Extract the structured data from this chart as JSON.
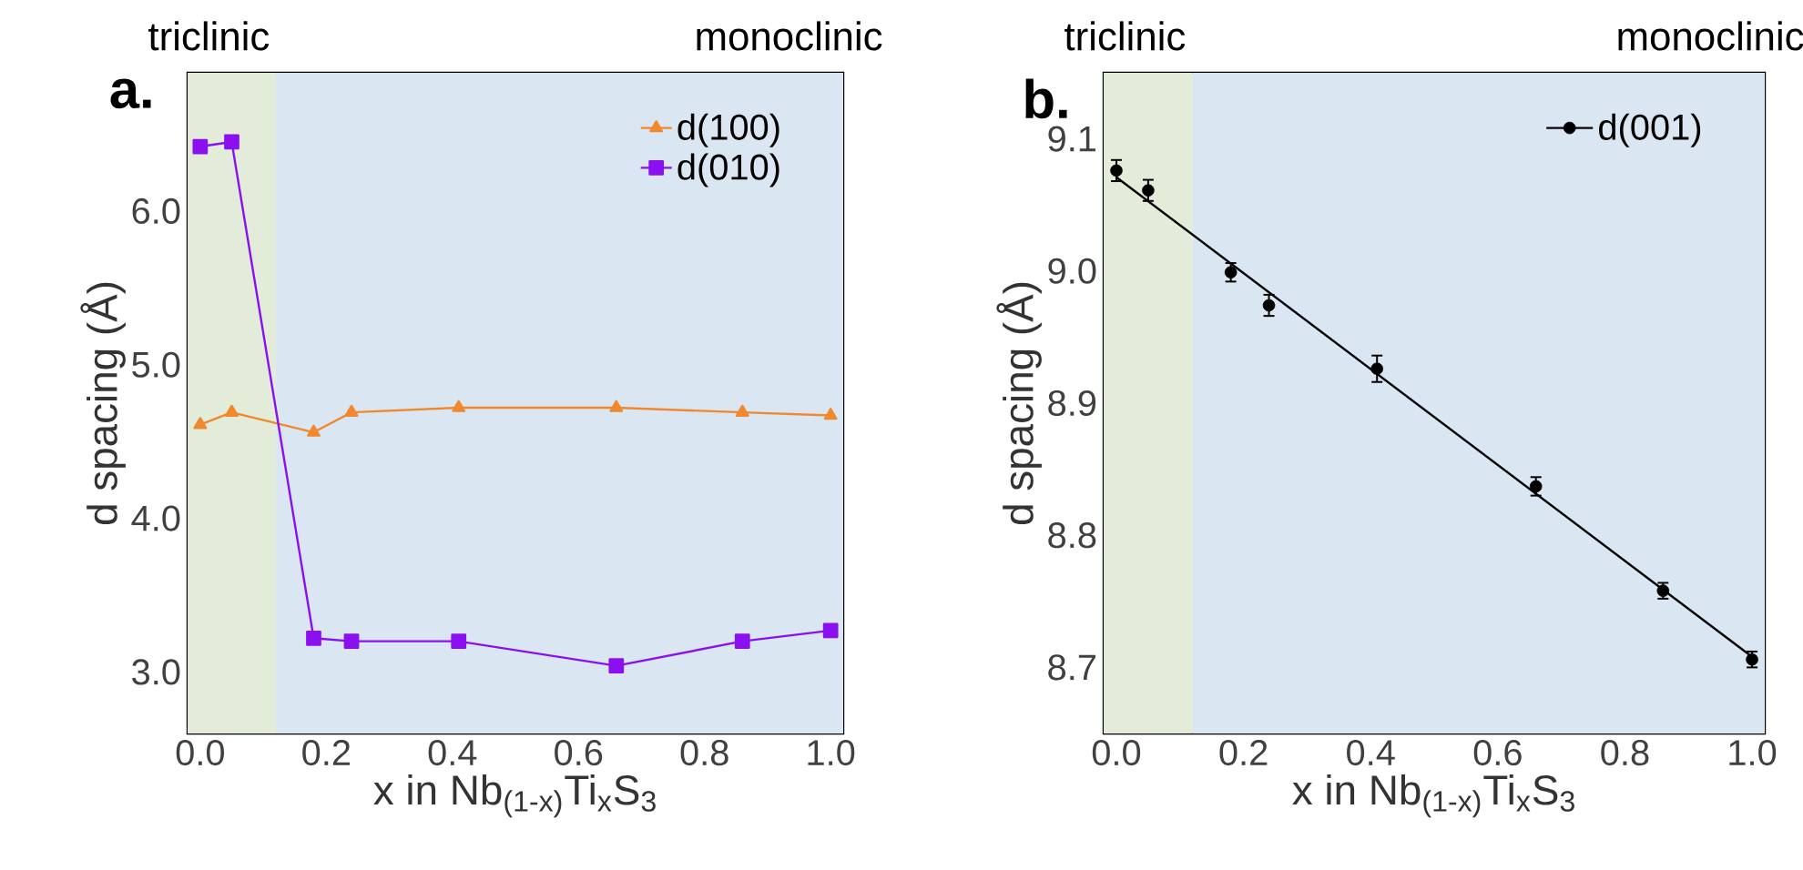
{
  "chart_data": [
    {
      "type": "line",
      "xlabel": "x in Nb$_{(1-x)}$Ti$_{x}$S$_{3}$",
      "ylabel": "d spacing (Å)",
      "annotations": [
        "a."
      ],
      "x": [
        0.0,
        0.05,
        0.18,
        0.24,
        0.41,
        0.66,
        0.86,
        1.0
      ],
      "series": [
        {
          "name": "d(100)",
          "color": "#f0882e",
          "marker": "triangle",
          "values": [
            4.61,
            4.69,
            4.56,
            4.69,
            4.72,
            4.72,
            4.69,
            4.67
          ]
        },
        {
          "name": "d(010)",
          "color": "#8a10f0",
          "marker": "square",
          "values": [
            6.42,
            6.45,
            3.22,
            3.2,
            3.2,
            3.04,
            3.2,
            3.27
          ]
        }
      ],
      "bands": [
        {
          "axis": "x",
          "from": -0.02,
          "to": 0.12,
          "label": "triclinic",
          "color": "#e2ecd8"
        },
        {
          "axis": "x",
          "from": 0.12,
          "to": 1.02,
          "label": "monoclinic",
          "color": "#dbe6f3"
        }
      ],
      "xlim": [
        -0.02,
        1.02
      ],
      "ylim": [
        2.6,
        6.9
      ],
      "xticks": [
        {
          "value": 0,
          "label": "0.0"
        },
        {
          "value": 0.2,
          "label": "0.2"
        },
        {
          "value": 0.4,
          "label": "0.4"
        },
        {
          "value": 0.6,
          "label": "0.6"
        },
        {
          "value": 0.8,
          "label": "0.8"
        },
        {
          "value": 1.0,
          "label": "1.0"
        }
      ],
      "yticks": [
        {
          "value": 3,
          "label": "3.0"
        },
        {
          "value": 4,
          "label": "4.0"
        },
        {
          "value": 5,
          "label": "5.0"
        },
        {
          "value": 6,
          "label": "6.0"
        }
      ],
      "legend": "top right"
    },
    {
      "type": "scatter",
      "xlabel": "x in Nb$_{(1-x)}$Ti$_{x}$S$_{3}$",
      "ylabel": "d spacing (Å)",
      "annotations": [
        "b."
      ],
      "series": [
        {
          "name": "d(001)",
          "color": "#000000",
          "marker": "circle",
          "x": [
            0.0,
            0.05,
            0.18,
            0.24,
            0.41,
            0.66,
            0.86,
            1.0
          ],
          "values": [
            9.076,
            9.061,
            8.999,
            8.974,
            8.926,
            8.837,
            8.758,
            8.706
          ],
          "errors": [
            0.008,
            0.008,
            0.007,
            0.008,
            0.01,
            0.007,
            0.006,
            0.006
          ]
        },
        {
          "type": "line",
          "color": "#000000",
          "marker": "none",
          "x": [
            0.0,
            1.0
          ],
          "values": [
            9.071,
            8.708
          ]
        }
      ],
      "bands": [
        {
          "axis": "x",
          "from": -0.02,
          "to": 0.12,
          "label": "triclinic",
          "color": "#e2ecd8"
        },
        {
          "axis": "x",
          "from": 0.12,
          "to": 1.02,
          "label": "monoclinic",
          "color": "#dbe6f3"
        }
      ],
      "xlim": [
        -0.02,
        1.02
      ],
      "ylim": [
        8.65,
        9.15
      ],
      "xticks": [
        {
          "value": 0,
          "label": "0.0"
        },
        {
          "value": 0.2,
          "label": "0.2"
        },
        {
          "value": 0.4,
          "label": "0.4"
        },
        {
          "value": 0.6,
          "label": "0.6"
        },
        {
          "value": 0.8,
          "label": "0.8"
        },
        {
          "value": 1.0,
          "label": "1.0"
        }
      ],
      "yticks": [
        {
          "value": 8.7,
          "label": "8.7"
        },
        {
          "value": 8.8,
          "label": "8.8"
        },
        {
          "value": 8.9,
          "label": "8.9"
        },
        {
          "value": 9.0,
          "label": "9.0"
        },
        {
          "value": 9.1,
          "label": "9.1"
        }
      ],
      "legend": "top right"
    }
  ]
}
